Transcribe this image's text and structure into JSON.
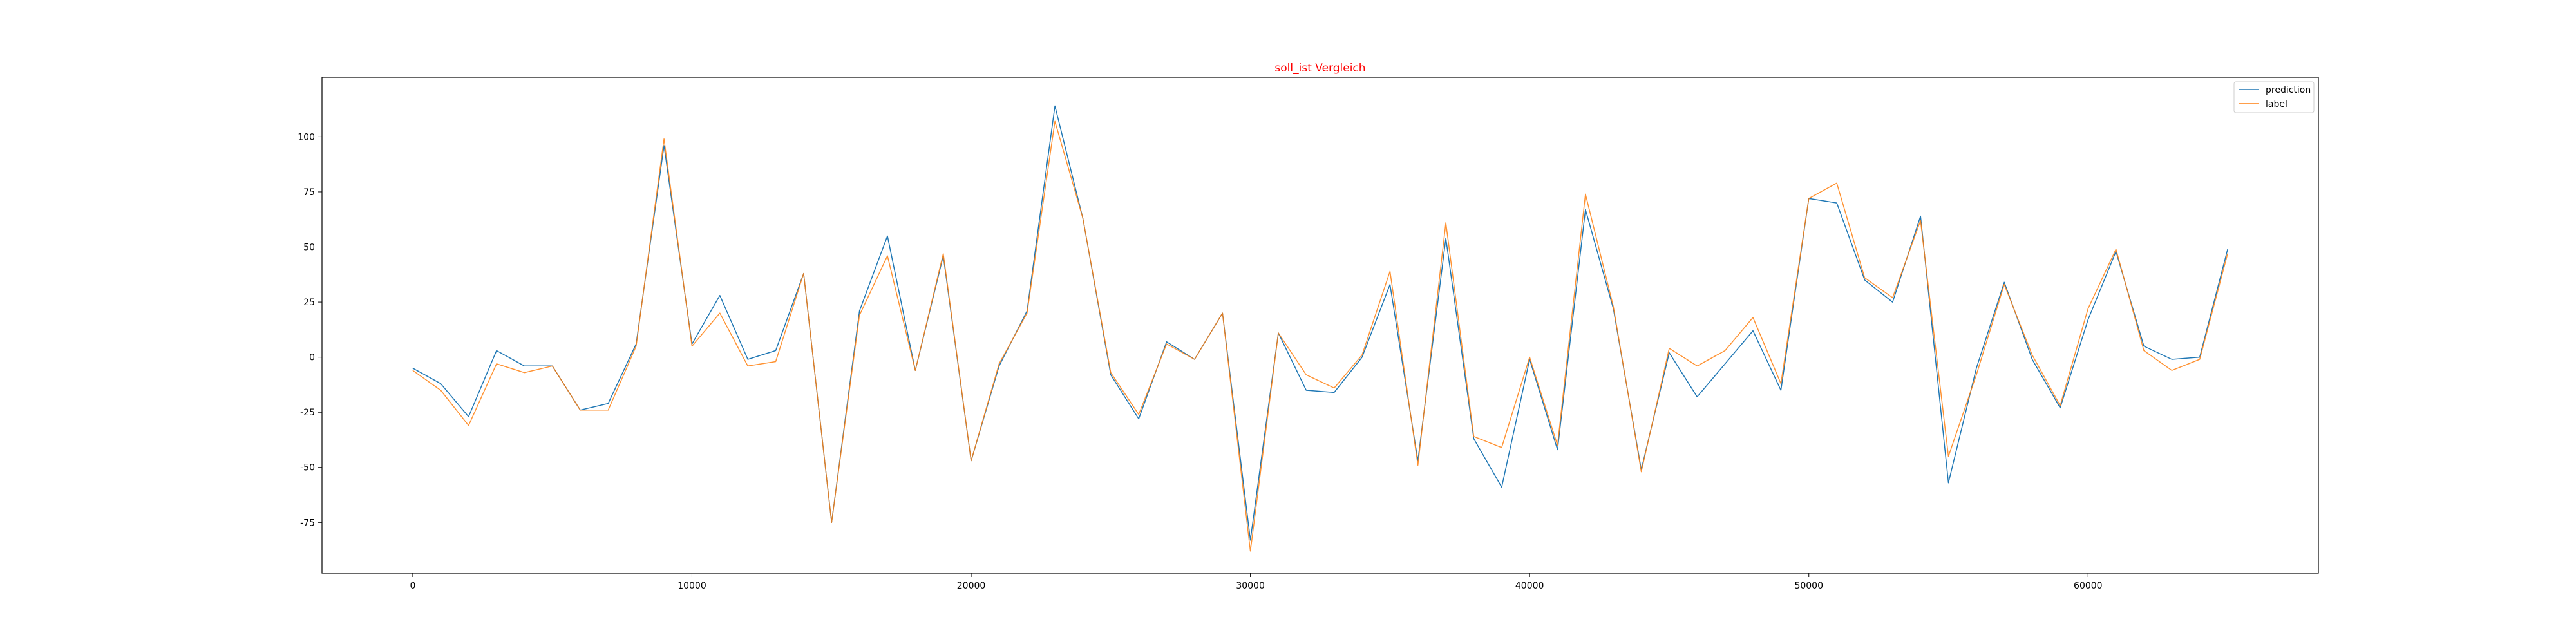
{
  "chart_data": {
    "type": "line",
    "title": "soll_ist Vergleich",
    "xlabel": "",
    "ylabel": "",
    "xlim": [
      -3250,
      68250
    ],
    "ylim": [
      -98,
      127
    ],
    "grid": false,
    "legend_position": "top-right",
    "x_ticks": [
      0,
      10000,
      20000,
      30000,
      40000,
      50000,
      60000
    ],
    "y_ticks": [
      -75,
      -50,
      -25,
      0,
      25,
      50,
      75,
      100
    ],
    "x": [
      0,
      1000,
      2000,
      3000,
      4000,
      5000,
      6000,
      7000,
      8000,
      9000,
      10000,
      11000,
      12000,
      13000,
      14000,
      15000,
      16000,
      17000,
      18000,
      19000,
      20000,
      21000,
      22000,
      23000,
      24000,
      25000,
      26000,
      27000,
      28000,
      29000,
      30000,
      31000,
      32000,
      33000,
      34000,
      35000,
      36000,
      37000,
      38000,
      39000,
      40000,
      41000,
      42000,
      43000,
      44000,
      45000,
      46000,
      47000,
      48000,
      49000,
      50000,
      51000,
      52000,
      53000,
      54000,
      55000,
      56000,
      57000,
      58000,
      59000,
      60000,
      61000,
      62000,
      63000,
      64000,
      65000
    ],
    "series": [
      {
        "name": "prediction",
        "color": "#1f77b4",
        "values": [
          -5,
          -12,
          -27,
          3,
          -4,
          -4,
          -24,
          -21,
          6,
          96,
          6,
          28,
          -1,
          3,
          38,
          -75,
          21,
          55,
          -6,
          46,
          -47,
          -4,
          21,
          114,
          63,
          -8,
          -28,
          7,
          -1,
          20,
          -83,
          11,
          -15,
          -16,
          0,
          33,
          -47,
          54,
          -37,
          -59,
          -1,
          -42,
          67,
          22,
          -51,
          2,
          -18,
          -3,
          12,
          -15,
          72,
          70,
          35,
          25,
          64,
          -57,
          -5,
          34,
          -1,
          -23,
          17,
          48,
          5,
          -1,
          0,
          49
        ]
      },
      {
        "name": "label",
        "color": "#ff7f0e",
        "values": [
          -6,
          -15,
          -31,
          -3,
          -7,
          -4,
          -24,
          -24,
          5,
          99,
          5,
          20,
          -4,
          -2,
          38,
          -75,
          19,
          46,
          -6,
          47,
          -47,
          -3,
          20,
          107,
          63,
          -7,
          -26,
          6,
          -1,
          20,
          -88,
          11,
          -8,
          -14,
          1,
          39,
          -49,
          61,
          -36,
          -41,
          0,
          -40,
          74,
          23,
          -52,
          4,
          -4,
          3,
          18,
          -12,
          72,
          79,
          36,
          27,
          62,
          -45,
          -8,
          33,
          1,
          -22,
          22,
          49,
          3,
          -6,
          -1,
          47
        ]
      }
    ]
  }
}
